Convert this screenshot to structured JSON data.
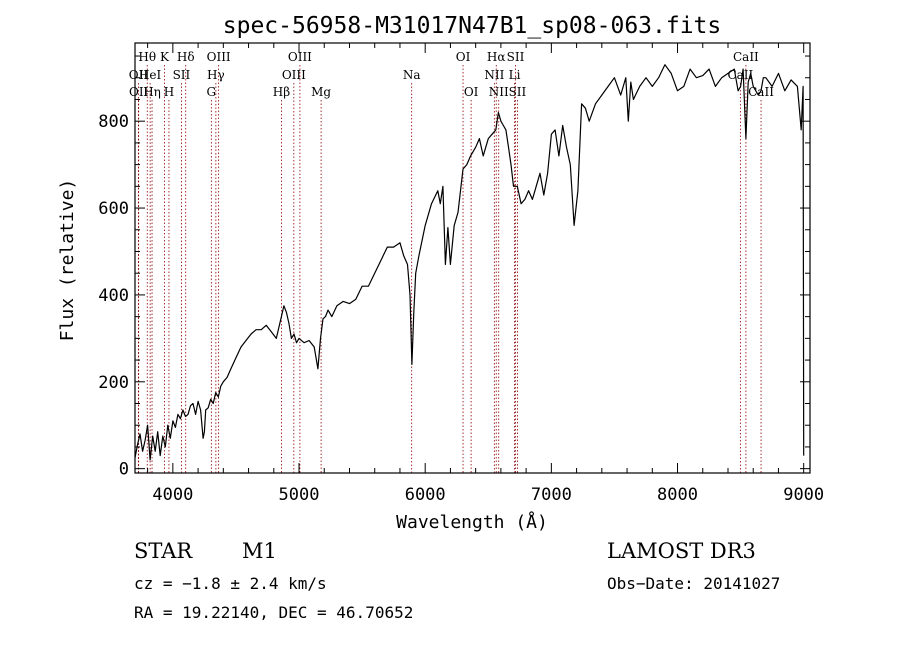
{
  "chart_data": {
    "type": "line",
    "title": "spec-56958-M31017N47B1_sp08-063.fits",
    "xlabel": "Wavelength (Å)",
    "ylabel": "Flux (relative)",
    "xlim": [
      3700,
      9050
    ],
    "ylim": [
      -10,
      980
    ],
    "x_ticks": [
      4000,
      5000,
      6000,
      7000,
      8000,
      9000
    ],
    "y_ticks": [
      0,
      200,
      400,
      600,
      800
    ],
    "grid": false,
    "series": [
      {
        "name": "spectrum",
        "x": [
          3700,
          3720,
          3740,
          3760,
          3780,
          3800,
          3820,
          3840,
          3860,
          3880,
          3900,
          3920,
          3940,
          3960,
          3980,
          4000,
          4020,
          4040,
          4060,
          4080,
          4100,
          4120,
          4140,
          4160,
          4180,
          4200,
          4220,
          4240,
          4250,
          4260,
          4280,
          4300,
          4320,
          4340,
          4360,
          4380,
          4400,
          4430,
          4460,
          4500,
          4540,
          4580,
          4620,
          4660,
          4700,
          4740,
          4780,
          4820,
          4860,
          4880,
          4900,
          4920,
          4940,
          4960,
          4980,
          5000,
          5040,
          5080,
          5120,
          5150,
          5170,
          5190,
          5210,
          5230,
          5260,
          5300,
          5350,
          5400,
          5450,
          5500,
          5550,
          5600,
          5650,
          5700,
          5750,
          5800,
          5830,
          5860,
          5880,
          5895,
          5910,
          5925,
          5950,
          6000,
          6050,
          6100,
          6120,
          6140,
          6160,
          6180,
          6200,
          6230,
          6260,
          6280,
          6300,
          6330,
          6360,
          6400,
          6430,
          6460,
          6500,
          6530,
          6560,
          6580,
          6600,
          6620,
          6640,
          6660,
          6680,
          6700,
          6730,
          6760,
          6790,
          6820,
          6850,
          6880,
          6910,
          6940,
          6970,
          7000,
          7030,
          7060,
          7090,
          7120,
          7150,
          7180,
          7210,
          7240,
          7270,
          7300,
          7350,
          7400,
          7450,
          7500,
          7550,
          7590,
          7610,
          7630,
          7650,
          7700,
          7750,
          7800,
          7850,
          7900,
          7950,
          8000,
          8050,
          8100,
          8150,
          8200,
          8250,
          8300,
          8350,
          8400,
          8450,
          8480,
          8500,
          8520,
          8542,
          8560,
          8580,
          8600,
          8640,
          8662,
          8680,
          8700,
          8750,
          8800,
          8850,
          8900,
          8950,
          8980,
          8995,
          9000
        ],
        "values": [
          25,
          55,
          80,
          40,
          65,
          100,
          20,
          75,
          40,
          85,
          30,
          75,
          50,
          100,
          70,
          110,
          95,
          125,
          115,
          135,
          120,
          125,
          145,
          150,
          125,
          155,
          135,
          70,
          85,
          135,
          140,
          160,
          150,
          175,
          165,
          190,
          200,
          210,
          230,
          255,
          280,
          295,
          310,
          320,
          320,
          330,
          315,
          300,
          350,
          375,
          360,
          335,
          300,
          310,
          290,
          300,
          290,
          295,
          280,
          230,
          300,
          345,
          350,
          365,
          350,
          375,
          385,
          380,
          390,
          420,
          420,
          450,
          480,
          510,
          510,
          520,
          490,
          470,
          400,
          240,
          360,
          450,
          490,
          560,
          610,
          640,
          610,
          650,
          470,
          555,
          470,
          560,
          590,
          640,
          690,
          700,
          720,
          740,
          760,
          720,
          760,
          770,
          780,
          820,
          800,
          790,
          780,
          740,
          700,
          650,
          650,
          610,
          620,
          640,
          620,
          650,
          680,
          630,
          680,
          770,
          780,
          720,
          790,
          740,
          700,
          560,
          640,
          840,
          830,
          800,
          840,
          860,
          880,
          900,
          860,
          900,
          800,
          890,
          850,
          880,
          900,
          880,
          900,
          930,
          910,
          870,
          880,
          920,
          900,
          905,
          920,
          880,
          900,
          910,
          920,
          870,
          880,
          920,
          760,
          890,
          910,
          880,
          860,
          870,
          900,
          900,
          880,
          910,
          870,
          895,
          880,
          780,
          880,
          30
        ]
      }
    ],
    "lines": [
      {
        "label": "Hθ",
        "x": 3797,
        "row": 0
      },
      {
        "label": "OII",
        "x": 3727,
        "row": 1
      },
      {
        "label": "OII",
        "x": 3729,
        "row": 2
      },
      {
        "label": "HeI",
        "x": 3820,
        "row": 1
      },
      {
        "label": "Hη",
        "x": 3835,
        "row": 2
      },
      {
        "label": "K",
        "x": 3934,
        "row": 0
      },
      {
        "label": "SII",
        "x": 4068,
        "row": 1
      },
      {
        "label": "H",
        "x": 3969,
        "row": 2
      },
      {
        "label": "Hδ",
        "x": 4102,
        "row": 0
      },
      {
        "label": "OIII",
        "x": 4363,
        "row": 0
      },
      {
        "label": "Hγ",
        "x": 4341,
        "row": 1
      },
      {
        "label": "G",
        "x": 4305,
        "row": 2
      },
      {
        "label": "Hβ",
        "x": 4861,
        "row": 2
      },
      {
        "label": "OIII",
        "x": 5007,
        "row": 0
      },
      {
        "label": "OIII",
        "x": 4959,
        "row": 1
      },
      {
        "label": "Mg",
        "x": 5175,
        "row": 2
      },
      {
        "label": "Na",
        "x": 5893,
        "row": 1
      },
      {
        "label": "OI",
        "x": 6300,
        "row": 0
      },
      {
        "label": "OI",
        "x": 6364,
        "row": 2
      },
      {
        "label": "Hα",
        "x": 6563,
        "row": 0
      },
      {
        "label": "NII",
        "x": 6548,
        "row": 1
      },
      {
        "label": "NII",
        "x": 6583,
        "row": 2
      },
      {
        "label": "SII",
        "x": 6716,
        "row": 0
      },
      {
        "label": "Li",
        "x": 6708,
        "row": 1
      },
      {
        "label": "SII",
        "x": 6731,
        "row": 2
      },
      {
        "label": "CaII",
        "x": 8542,
        "row": 0
      },
      {
        "label": "CaII",
        "x": 8498,
        "row": 1
      },
      {
        "label": "CaII",
        "x": 8662,
        "row": 2
      }
    ]
  },
  "info": {
    "class_label": "STAR",
    "subclass": "M1",
    "survey": "LAMOST DR3",
    "cz_label": "cz = −1.8 ± 2.4 km/s",
    "obs_date": "Obs−Date: 20141027",
    "coords": "RA =  19.22140, DEC =  46.70652"
  },
  "colors": {
    "axis": "#000000",
    "line_marker": "#8b0000"
  }
}
